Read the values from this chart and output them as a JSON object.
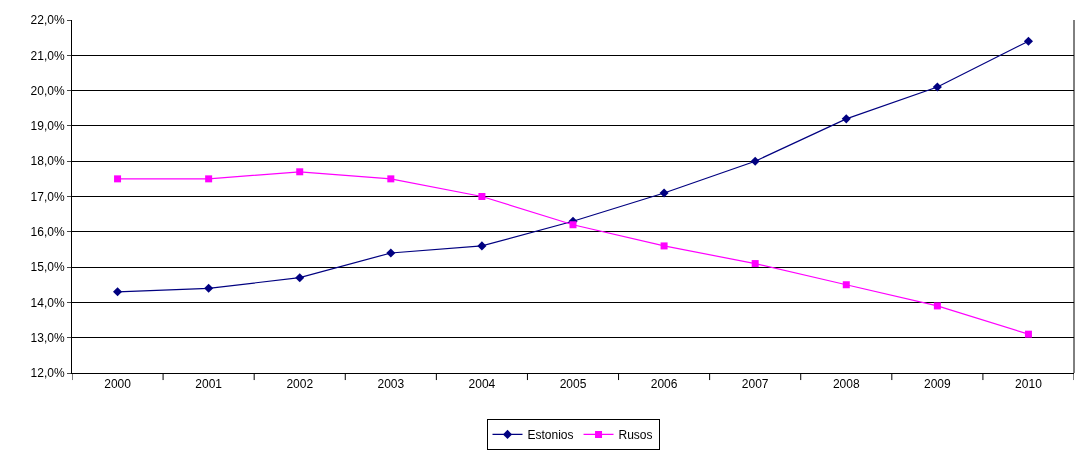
{
  "chart_data": {
    "type": "line",
    "categories": [
      "2000",
      "2001",
      "2002",
      "2003",
      "2004",
      "2005",
      "2006",
      "2007",
      "2008",
      "2009",
      "2010"
    ],
    "series": [
      {
        "name": "Estonios",
        "color": "#000080",
        "marker": "diamond",
        "values": [
          14.3,
          14.4,
          14.7,
          15.4,
          15.6,
          16.3,
          17.1,
          18.0,
          19.2,
          20.1,
          21.4
        ]
      },
      {
        "name": "Rusos",
        "color": "#ff00ff",
        "marker": "square",
        "values": [
          17.5,
          17.5,
          17.7,
          17.5,
          17.0,
          16.2,
          15.6,
          15.1,
          14.5,
          13.9,
          13.1
        ]
      }
    ],
    "ylim": [
      12,
      22
    ],
    "yticks": [
      {
        "value": 12,
        "label": "12,0%"
      },
      {
        "value": 13,
        "label": "13,0%"
      },
      {
        "value": 14,
        "label": "14,0%"
      },
      {
        "value": 15,
        "label": "15,0%"
      },
      {
        "value": 16,
        "label": "16,0%"
      },
      {
        "value": 17,
        "label": "17,0%"
      },
      {
        "value": 18,
        "label": "18,0%"
      },
      {
        "value": 19,
        "label": "19,0%"
      },
      {
        "value": 20,
        "label": "20,0%"
      },
      {
        "value": 21,
        "label": "21,0%"
      },
      {
        "value": 22,
        "label": "22,0%"
      }
    ],
    "grid": "y",
    "legend": "bottom",
    "line_style": "solid"
  }
}
